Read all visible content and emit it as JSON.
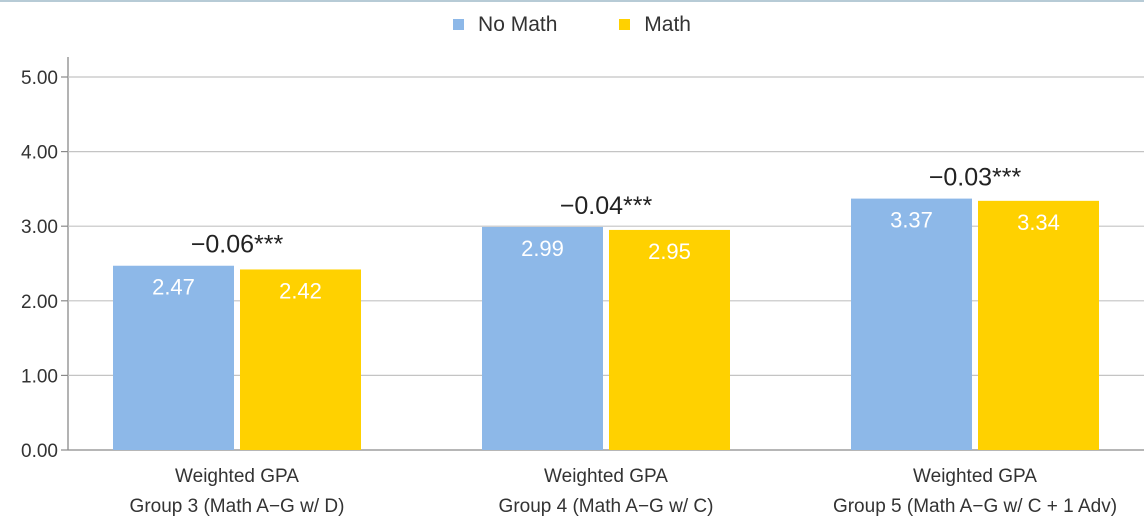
{
  "legend": [
    {
      "name": "No Math",
      "color": "#8db8e8"
    },
    {
      "name": "Math",
      "color": "#ffd100"
    }
  ],
  "chart_data": {
    "type": "bar",
    "categories": [
      [
        "Weighted GPA",
        "Group 3 (Math A−G w/ D)"
      ],
      [
        "Weighted GPA",
        "Group 4 (Math A−G w/ C)"
      ],
      [
        "Weighted GPA",
        "Group 5 (Math A−G w/ C + 1 Adv)"
      ]
    ],
    "series": [
      {
        "name": "No Math",
        "color": "#8db8e8",
        "values": [
          2.47,
          2.99,
          3.37
        ],
        "labels": [
          "2.47",
          "2.99",
          "3.37"
        ]
      },
      {
        "name": "Math",
        "color": "#ffd100",
        "values": [
          2.42,
          2.95,
          3.34
        ],
        "labels": [
          "2.42",
          "2.95",
          "3.34"
        ]
      }
    ],
    "annotations": [
      "−0.06***",
      "−0.04***",
      "−0.03***"
    ],
    "ylim": [
      0,
      5
    ],
    "yticks": [
      0,
      1,
      2,
      3,
      4,
      5
    ],
    "ytick_labels": [
      "0.00",
      "1.00",
      "2.00",
      "3.00",
      "4.00",
      "5.00"
    ],
    "grid": true,
    "legend_position": "top-center"
  }
}
